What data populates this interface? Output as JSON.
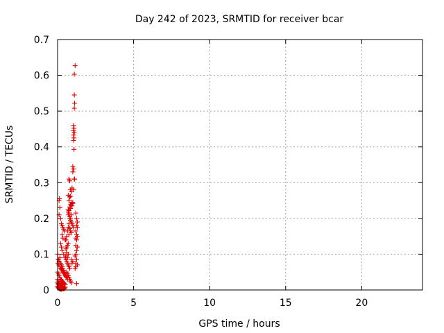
{
  "chart_data": {
    "type": "scatter",
    "title": "Day 242 of 2023, SRMTID for receiver bcar",
    "xlabel": "GPS time / hours",
    "ylabel": "SRMTID / TECUs",
    "xlim": [
      0,
      24
    ],
    "ylim": [
      0,
      0.7
    ],
    "xticks": [
      0,
      5,
      10,
      15,
      20
    ],
    "yticks": [
      0,
      0.1,
      0.2,
      0.3,
      0.4,
      0.5,
      0.6,
      0.7
    ],
    "grid": true,
    "marker": "+",
    "color": "#dd0000",
    "series": [
      {
        "x": [
          1.15,
          1.1,
          1.1,
          1.12,
          1.1,
          1.05,
          1.08,
          1.05,
          1.1,
          1.05,
          1.08,
          1.05,
          1.08,
          1.0,
          1.05,
          1.0,
          1.1,
          1.12,
          1.05,
          0.95,
          0.92,
          0.85,
          1.0,
          0.9,
          1.0,
          0.95,
          0.85,
          0.75,
          0.7,
          0.72,
          0.8,
          0.85,
          0.9,
          0.95,
          1.0,
          1.05,
          0.8,
          0.85,
          0.9,
          1.2,
          1.25,
          1.3,
          1.25,
          1.3,
          1.2,
          1.25,
          1.3,
          1.2,
          1.25,
          1.2,
          1.3,
          1.25,
          1.2,
          1.15,
          1.25,
          1.2,
          1.3,
          1.2,
          1.25,
          1.15,
          0.75,
          0.8,
          0.85,
          0.7,
          0.8,
          0.75,
          0.9,
          0.85,
          0.8,
          0.7,
          0.75,
          0.9,
          0.8,
          0.85,
          0.75,
          0.7,
          0.65,
          0.75,
          0.6,
          0.55,
          0.7,
          0.65,
          0.6,
          0.55,
          0.6,
          0.7,
          0.55,
          0.65,
          0.9,
          1.0,
          0.95,
          0.1,
          0.12,
          0.15,
          0.1,
          0.2,
          0.25,
          0.3,
          0.35,
          0.4,
          0.45,
          0.3,
          0.35,
          0.5,
          0.2,
          0.25,
          0.3,
          0.4,
          0.15,
          0.05,
          0.1,
          0.2,
          0.25,
          0.3,
          0.35,
          0.4,
          0.45,
          0.5,
          0.55,
          0.6,
          0.65,
          0.0,
          0.05,
          0.1,
          0.02,
          0.08,
          0.15,
          0.2,
          0.25,
          0.3,
          0.35,
          0.4,
          0.45,
          0.5,
          0.55,
          0.6,
          0.0,
          0.05,
          0.1,
          0.15,
          0.2,
          0.25,
          0.3,
          0.35,
          0.4,
          0.45,
          0.5,
          0.0,
          0.05,
          0.1,
          0.15,
          0.2,
          0.25,
          0.3,
          0.35,
          0.4,
          0.45,
          0.0,
          0.03,
          0.05,
          0.08,
          0.12,
          0.15,
          0.2,
          0.25,
          0.28,
          0.35,
          0.4,
          0.45,
          0.5,
          0.05,
          0.1,
          0.15,
          0.2,
          0.25,
          0.3,
          0.35,
          0.4,
          0.0,
          0.05,
          0.1,
          0.15,
          0.2,
          0.25,
          0.3,
          0.5,
          0.55,
          0.6,
          0.65,
          0.7,
          0.75,
          0.8,
          0.6,
          0.65,
          0.7,
          0.75,
          0.8,
          0.85,
          0.9
        ],
        "y": [
          0.627,
          0.603,
          0.545,
          0.522,
          0.508,
          0.46,
          0.452,
          0.445,
          0.44,
          0.433,
          0.425,
          0.418,
          0.393,
          0.345,
          0.338,
          0.33,
          0.31,
          0.31,
          0.28,
          0.285,
          0.275,
          0.262,
          0.245,
          0.24,
          0.242,
          0.235,
          0.228,
          0.222,
          0.218,
          0.21,
          0.205,
          0.2,
          0.19,
          0.185,
          0.18,
          0.175,
          0.172,
          0.165,
          0.16,
          0.215,
          0.2,
          0.19,
          0.18,
          0.175,
          0.165,
          0.155,
          0.15,
          0.145,
          0.14,
          0.125,
          0.12,
          0.11,
          0.1,
          0.095,
          0.085,
          0.075,
          0.07,
          0.065,
          0.018,
          0.06,
          0.31,
          0.305,
          0.28,
          0.265,
          0.26,
          0.25,
          0.245,
          0.238,
          0.232,
          0.225,
          0.215,
          0.21,
          0.2,
          0.195,
          0.185,
          0.175,
          0.165,
          0.155,
          0.15,
          0.14,
          0.13,
          0.125,
          0.12,
          0.115,
          0.105,
          0.1,
          0.095,
          0.09,
          0.085,
          0.08,
          0.075,
          0.25,
          0.255,
          0.23,
          0.21,
          0.2,
          0.185,
          0.18,
          0.175,
          0.17,
          0.165,
          0.155,
          0.145,
          0.14,
          0.13,
          0.12,
          0.11,
          0.1,
          0.09,
          0.085,
          0.08,
          0.075,
          0.07,
          0.065,
          0.06,
          0.055,
          0.05,
          0.045,
          0.04,
          0.035,
          0.03,
          0.1,
          0.085,
          0.08,
          0.075,
          0.07,
          0.065,
          0.06,
          0.058,
          0.055,
          0.05,
          0.048,
          0.045,
          0.04,
          0.038,
          0.035,
          0.05,
          0.045,
          0.04,
          0.035,
          0.03,
          0.028,
          0.025,
          0.022,
          0.02,
          0.018,
          0.015,
          0.03,
          0.025,
          0.02,
          0.018,
          0.015,
          0.012,
          0.01,
          0.008,
          0.006,
          0.004,
          0.01,
          0.008,
          0.006,
          0.005,
          0.004,
          0.003,
          0.002,
          0.002,
          0.003,
          0.004,
          0.005,
          0.006,
          0.008,
          0.015,
          0.012,
          0.01,
          0.008,
          0.006,
          0.005,
          0.004,
          0.003,
          0.02,
          0.018,
          0.016,
          0.014,
          0.012,
          0.01,
          0.008,
          0.09,
          0.085,
          0.08,
          0.075,
          0.07,
          0.065,
          0.06,
          0.05,
          0.045,
          0.04,
          0.035,
          0.03,
          0.025,
          0.02
        ]
      }
    ]
  }
}
